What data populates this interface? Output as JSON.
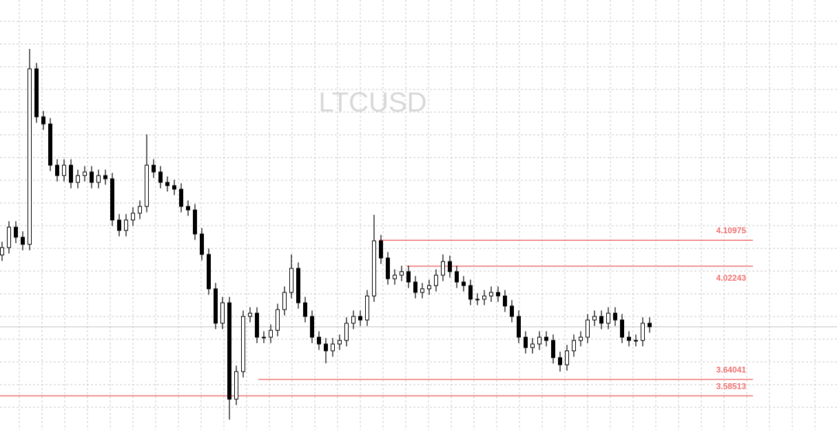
{
  "chart_data": {
    "type": "candlestick",
    "title": "LTCUSD",
    "open": [
      4.06,
      4.085,
      4.154,
      4.12,
      4.096,
      4.688,
      4.526,
      4.502,
      4.363,
      4.328,
      4.363,
      4.305,
      4.328,
      4.34,
      4.305,
      4.328,
      4.317,
      4.178,
      4.143,
      4.178,
      4.201,
      4.224,
      4.363,
      4.34,
      4.305,
      4.294,
      4.282,
      4.224,
      4.212,
      4.131,
      4.062,
      3.946,
      3.83,
      3.899,
      3.574,
      3.667,
      3.853,
      3.864,
      3.783,
      3.783,
      3.806,
      3.876,
      3.934,
      4.015,
      3.899,
      3.853,
      3.783,
      3.76,
      3.737,
      3.76,
      3.772,
      3.83,
      3.853,
      3.841,
      3.922,
      4.108,
      4.05,
      3.98,
      3.992,
      4.004,
      3.969,
      3.934,
      3.946,
      3.957,
      3.992,
      4.038,
      4.004,
      3.969,
      3.957,
      3.911,
      3.911,
      3.922,
      3.934,
      3.922,
      3.888,
      3.853,
      3.783,
      3.748,
      3.76,
      3.783,
      3.772,
      3.714,
      3.69,
      3.737,
      3.772,
      3.783,
      3.841,
      3.853,
      3.83,
      3.864,
      3.841,
      3.783,
      3.772,
      3.772,
      3.83
    ],
    "high": [
      4.105,
      4.174,
      4.174,
      4.14,
      4.755,
      4.708,
      4.546,
      4.522,
      4.383,
      4.383,
      4.383,
      4.348,
      4.36,
      4.36,
      4.348,
      4.348,
      4.337,
      4.198,
      4.198,
      4.221,
      4.244,
      4.467,
      4.383,
      4.36,
      4.325,
      4.314,
      4.302,
      4.244,
      4.232,
      4.151,
      4.082,
      3.966,
      3.919,
      3.919,
      3.687,
      3.873,
      3.884,
      3.884,
      3.803,
      3.826,
      3.896,
      3.954,
      4.062,
      4.035,
      3.919,
      3.873,
      3.803,
      3.78,
      3.78,
      3.792,
      3.85,
      3.873,
      3.873,
      3.942,
      4.196,
      4.128,
      4.07,
      4.012,
      4.024,
      4.024,
      3.989,
      3.966,
      3.977,
      4.012,
      4.062,
      4.058,
      4.024,
      3.989,
      3.977,
      3.931,
      3.942,
      3.954,
      3.954,
      3.942,
      3.908,
      3.873,
      3.803,
      3.78,
      3.803,
      3.803,
      3.792,
      3.734,
      3.757,
      3.792,
      3.803,
      3.861,
      3.873,
      3.873,
      3.884,
      3.884,
      3.861,
      3.803,
      3.792,
      3.85,
      3.85
    ],
    "low": [
      4.04,
      4.065,
      4.1,
      4.076,
      4.076,
      4.506,
      4.482,
      4.343,
      4.308,
      4.308,
      4.285,
      4.285,
      4.308,
      4.285,
      4.285,
      4.297,
      4.158,
      4.123,
      4.123,
      4.158,
      4.181,
      4.204,
      4.32,
      4.285,
      4.274,
      4.262,
      4.204,
      4.192,
      4.111,
      4.042,
      3.926,
      3.81,
      3.81,
      3.505,
      3.554,
      3.647,
      3.833,
      3.763,
      3.763,
      3.763,
      3.786,
      3.856,
      3.914,
      3.879,
      3.833,
      3.763,
      3.74,
      3.695,
      3.717,
      3.74,
      3.752,
      3.81,
      3.821,
      3.821,
      3.902,
      4.03,
      3.96,
      3.96,
      3.972,
      3.949,
      3.914,
      3.914,
      3.926,
      3.937,
      3.972,
      3.984,
      3.949,
      3.937,
      3.891,
      3.891,
      3.891,
      3.902,
      3.902,
      3.868,
      3.833,
      3.763,
      3.728,
      3.728,
      3.74,
      3.752,
      3.694,
      3.667,
      3.67,
      3.717,
      3.752,
      3.763,
      3.821,
      3.81,
      3.81,
      3.821,
      3.763,
      3.752,
      3.752,
      3.752,
      3.798
    ],
    "close": [
      4.085,
      4.154,
      4.12,
      4.096,
      4.688,
      4.526,
      4.502,
      4.363,
      4.328,
      4.363,
      4.305,
      4.328,
      4.34,
      4.305,
      4.328,
      4.317,
      4.178,
      4.143,
      4.178,
      4.201,
      4.224,
      4.363,
      4.34,
      4.305,
      4.294,
      4.282,
      4.224,
      4.212,
      4.131,
      4.062,
      3.946,
      3.83,
      3.899,
      3.574,
      3.667,
      3.853,
      3.864,
      3.783,
      3.783,
      3.806,
      3.876,
      3.934,
      4.015,
      3.899,
      3.853,
      3.783,
      3.76,
      3.737,
      3.76,
      3.772,
      3.83,
      3.853,
      3.841,
      3.922,
      4.108,
      4.05,
      3.98,
      3.992,
      4.004,
      3.969,
      3.934,
      3.946,
      3.957,
      3.992,
      4.038,
      4.004,
      3.969,
      3.957,
      3.911,
      3.911,
      3.922,
      3.934,
      3.922,
      3.888,
      3.853,
      3.783,
      3.748,
      3.76,
      3.783,
      3.772,
      3.714,
      3.69,
      3.737,
      3.772,
      3.783,
      3.841,
      3.853,
      3.83,
      3.864,
      3.841,
      3.783,
      3.772,
      3.772,
      3.83,
      3.818
    ],
    "color": "#000000",
    "levels": [
      4.10975,
      4.02243,
      3.64041,
      3.58513
    ],
    "level_color": "#f07070",
    "ylim": [
      3.47,
      4.92
    ],
    "grid": true
  }
}
